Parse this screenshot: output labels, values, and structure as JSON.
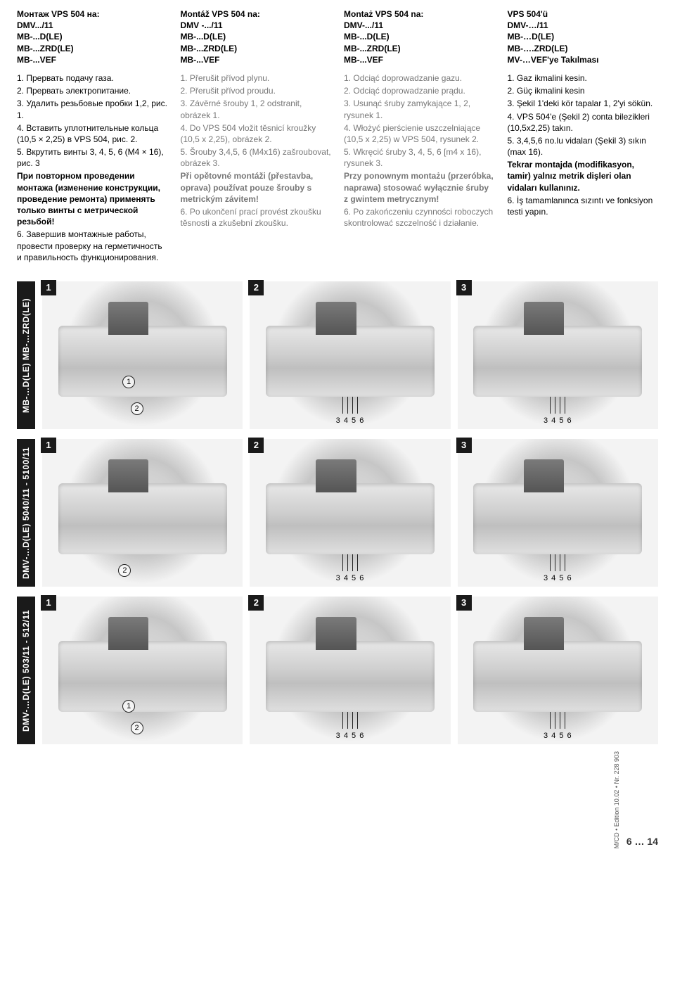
{
  "columns": [
    {
      "lang": "ru",
      "heading_lines": [
        "Монтаж VPS 504 на:",
        "DMV.../11",
        "MB-...D(LE)",
        "MB-...ZRD(LE)",
        "MB-...VEF"
      ],
      "items": [
        {
          "n": "1.",
          "text": "Прервать подачу газа.",
          "bold": false
        },
        {
          "n": "2.",
          "text": "Прервать электропитание.",
          "bold": false
        },
        {
          "n": "3.",
          "text": "Удалить резьбовые пробки 1,2, рис. 1.",
          "bold": false
        },
        {
          "n": "4.",
          "text": "Вставить уплотнительные кольца (10,5 × 2,25) в VPS 504, рис. 2.",
          "bold": false
        },
        {
          "n": "5.",
          "text": "Вкрутить винты 3, 4, 5, 6 (M4 × 16), рис. 3",
          "bold": false
        },
        {
          "n": "",
          "text": "При повторном проведении монтажа (изменение конструкции, проведение ремонта) применять только винты с метрической резьбой!",
          "bold": true
        },
        {
          "n": "6.",
          "text": "Завершив монтажные работы, провести проверку на герметичность и правильность функционирования.",
          "bold": false
        }
      ],
      "gray": false
    },
    {
      "lang": "cs",
      "heading_lines": [
        "Montáž VPS 504 na:",
        "DMV -.../11",
        "MB-...D(LE)",
        "MB-...ZRD(LE)",
        "MB-...VEF"
      ],
      "items": [
        {
          "n": "1.",
          "text": "Přerušit přívod plynu.",
          "bold": false
        },
        {
          "n": "2.",
          "text": "Přerušit přívod proudu.",
          "bold": false
        },
        {
          "n": "3.",
          "text": "Závěrné šrouby 1, 2 odstranit, obrázek 1.",
          "bold": false
        },
        {
          "n": "4.",
          "text": "Do VPS 504 vložit těsnicí kroužky (10,5 x 2,25), obrázek 2.",
          "bold": false
        },
        {
          "n": "5.",
          "text": "Šrouby 3,4,5, 6 (M4x16) zašroubovat, obrázek 3.",
          "bold": false
        },
        {
          "n": "",
          "text": "Při opětovné montáži (přestavba, oprava) používat pouze šrouby s metrickým závitem!",
          "bold": true
        },
        {
          "n": "6.",
          "text": "Po ukončení prací provést zkoušku těsnosti a zkušební zkoušku.",
          "bold": false
        }
      ],
      "gray": true
    },
    {
      "lang": "pl",
      "heading_lines": [
        "Montaż VPS 504 na:",
        "DMV-.../11",
        "MB-...D(LE)",
        "MB-...ZRD(LE)",
        "MB-...VEF"
      ],
      "items": [
        {
          "n": "1.",
          "text": "Odciąć doprowadzanie gazu.",
          "bold": false
        },
        {
          "n": "2.",
          "text": "Odciąć doprowadzanie prądu.",
          "bold": false
        },
        {
          "n": "3.",
          "text": "Usunąć śruby zamykające 1, 2, rysunek 1.",
          "bold": false
        },
        {
          "n": "4.",
          "text": "Włożyć pierścienie uszczelniające (10,5 x 2,25) w VPS 504, rysunek 2.",
          "bold": false
        },
        {
          "n": "5.",
          "text": "Wkręcić śruby 3, 4, 5, 6 [m4 x 16), rysunek 3.",
          "bold": false
        },
        {
          "n": "",
          "text": "Przy ponownym montażu (przeróbka, naprawa) stosować wyłącznie śruby z gwintem metrycznym!",
          "bold": true
        },
        {
          "n": "6.",
          "text": "Po zakończeniu czynności roboczych skontrolować szczelność i działanie.",
          "bold": false
        }
      ],
      "gray": true
    },
    {
      "lang": "tr",
      "heading_lines": [
        "VPS 504'ü",
        "DMV-…/11",
        "MB-…D(LE)",
        "MB-….ZRD(LE)",
        "MV-…VEF'ye Takılması"
      ],
      "items": [
        {
          "n": "1.",
          "text": "Gaz ikmalini kesin.",
          "bold": false
        },
        {
          "n": "2.",
          "text": "Güç ikmalini kesin",
          "bold": false
        },
        {
          "n": "3.",
          "text": "Şekil 1'deki kör tapalar 1, 2'yi sökün.",
          "bold": false
        },
        {
          "n": "4.",
          "text": "VPS 504'e (Şekil 2) conta bilezikleri (10,5x2,25) takın.",
          "bold": false
        },
        {
          "n": "5.",
          "text": "3,4,5,6 no.lu vidaları (Şekil 3) sıkın (max 16).",
          "bold": false
        },
        {
          "n": "",
          "text": "Tekrar montajda (modifikasyon, tamir) yalnız metrik dişleri olan vidaları kullanınız.",
          "bold": true
        },
        {
          "n": "6.",
          "text": "İş tamamlanınca sızıntı ve fonksiyon testi yapın.",
          "bold": false
        }
      ],
      "gray": false
    }
  ],
  "figure_rows": [
    {
      "label": "MB-…D(LE)    MB-…ZRD(LE)",
      "figs": [
        {
          "badge": "1",
          "circles": [
            {
              "t": "1",
              "x": 40,
              "y": 64
            },
            {
              "t": "2",
              "x": 44,
              "y": 82
            }
          ],
          "screwlabel": ""
        },
        {
          "badge": "2",
          "circles": [],
          "screwlabel": "3 4 5 6"
        },
        {
          "badge": "3",
          "circles": [],
          "screwlabel": "3 4 5 6"
        }
      ]
    },
    {
      "label": "DMV-…D(LE) 5040/11 - 5100/11",
      "figs": [
        {
          "badge": "1",
          "circles": [
            {
              "t": "2",
              "x": 38,
              "y": 85
            }
          ],
          "screwlabel": ""
        },
        {
          "badge": "2",
          "circles": [],
          "screwlabel": "3 4 5 6"
        },
        {
          "badge": "3",
          "circles": [],
          "screwlabel": "3 4 5 6"
        }
      ]
    },
    {
      "label": "DMV-…D(LE) 503/11 - 512/11",
      "figs": [
        {
          "badge": "1",
          "circles": [
            {
              "t": "1",
              "x": 40,
              "y": 70
            },
            {
              "t": "2",
              "x": 44,
              "y": 85
            }
          ],
          "screwlabel": ""
        },
        {
          "badge": "2",
          "circles": [],
          "screwlabel": "3 4 5 6"
        },
        {
          "badge": "3",
          "circles": [],
          "screwlabel": "3 4 5 6"
        }
      ]
    }
  ],
  "footer": {
    "vnote": "M/CD • Edition 10.02 • Nr. 228 903",
    "pages": "6 … 14"
  }
}
